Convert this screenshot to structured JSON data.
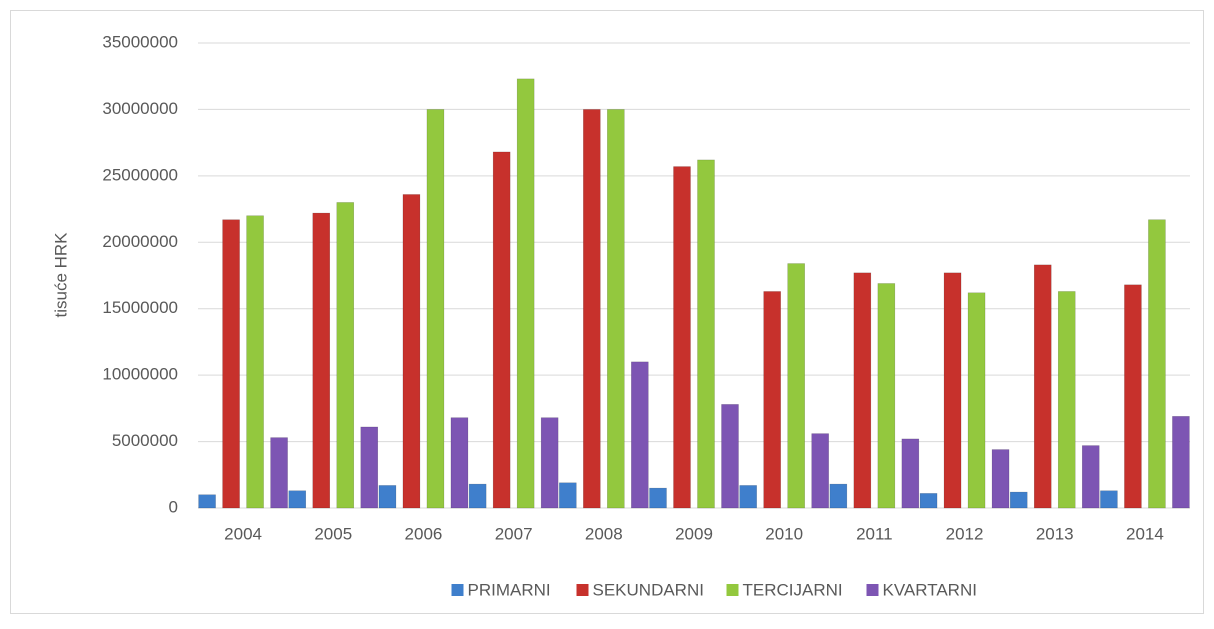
{
  "chart_data": {
    "type": "bar",
    "y_label": "tisuće HRK",
    "categories": [
      "2004",
      "2005",
      "2006",
      "2007",
      "2008",
      "2009",
      "2010",
      "2011",
      "2012",
      "2013",
      "2014"
    ],
    "series": [
      {
        "name": "PRIMARNI",
        "color": "#3f7fcc",
        "values": [
          1000000,
          1300000,
          1700000,
          1800000,
          1900000,
          1500000,
          1700000,
          1800000,
          1100000,
          1200000,
          1300000
        ]
      },
      {
        "name": "SEKUNDARNI",
        "color": "#c7312c",
        "values": [
          21700000,
          22200000,
          23600000,
          26800000,
          30000000,
          25700000,
          16300000,
          17700000,
          17700000,
          18300000,
          16800000
        ]
      },
      {
        "name": "TERCIJARNI",
        "color": "#93c83e",
        "values": [
          22000000,
          23000000,
          30000000,
          32300000,
          30000000,
          26200000,
          18400000,
          16900000,
          16200000,
          16300000,
          21700000
        ]
      },
      {
        "name": "KVARTARNI",
        "color": "#7d55b3",
        "values": [
          5300000,
          6100000,
          6800000,
          6800000,
          11000000,
          7800000,
          5600000,
          5200000,
          4400000,
          4700000,
          6900000
        ]
      }
    ],
    "ylim": [
      0,
      35000000
    ],
    "yticks": [
      0,
      5000000,
      10000000,
      15000000,
      20000000,
      25000000,
      30000000,
      35000000
    ],
    "grid": true,
    "legend": "bottom"
  }
}
